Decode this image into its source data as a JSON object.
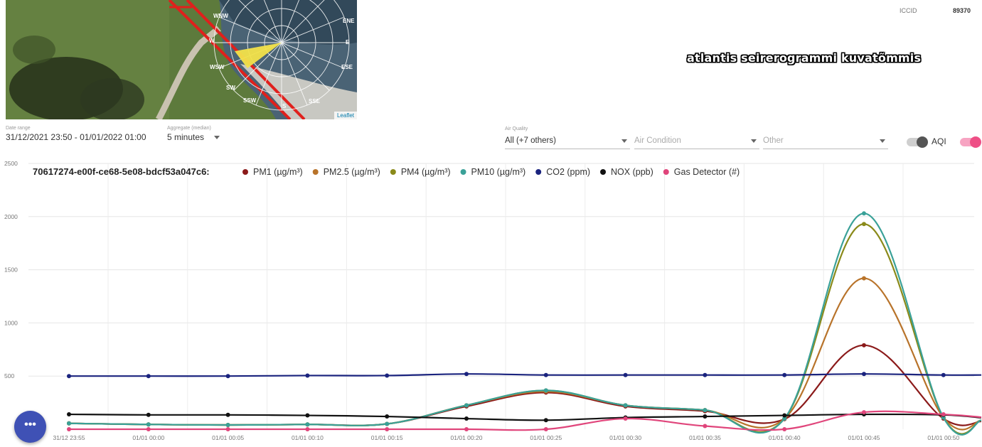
{
  "map": {
    "compass_labels": [
      "ENE",
      "E",
      "ESE",
      "SSE",
      "S",
      "SSW",
      "SW",
      "WSW",
      "W",
      "WNW"
    ],
    "attribution": "Leaflet",
    "colors": {
      "grass": "#5d7a3c",
      "path": "#c9c2b0",
      "water": "#8a9aa8",
      "wind_cone": "#f2e14a",
      "track": "#e0201c"
    }
  },
  "header": {
    "iccid_label": "ICCID",
    "iccid_value": "89370",
    "overlay_title": "atlantis seirerogrammi kuvatõmmis"
  },
  "filters": {
    "date_range": {
      "label": "Date range",
      "value": "31/12/2021 23:50 - 01/01/2022 01:00"
    },
    "aggregate": {
      "label": "Aggregate (median)",
      "value": "5 minutes"
    },
    "air_quality": {
      "label": "Air Quality",
      "value": "All (+7 others)"
    },
    "air_condition": {
      "placeholder": "Air Condition"
    },
    "other": {
      "placeholder": "Other"
    },
    "aqi_label": "AQI",
    "aqi_toggle_on": false,
    "second_toggle_on": true
  },
  "fab": {
    "label": "•••"
  },
  "chart_data": {
    "type": "line",
    "title": "70617274-e00f-ce68-5e08-bdcf53a047c6:",
    "ylim": [
      0,
      2500
    ],
    "yticks": [
      500,
      1000,
      1500,
      2000,
      2500
    ],
    "grid": true,
    "legend_position": "top",
    "categories": [
      "31/12 23:55",
      "01/01 00:00",
      "01/01 00:05",
      "01/01 00:10",
      "01/01 00:15",
      "01/01 00:20",
      "01/01 00:25",
      "01/01 00:30",
      "01/01 00:35",
      "01/01 00:40",
      "01/01 00:45",
      "01/01 00:50"
    ],
    "series": [
      {
        "name": "PM1 (µg/m³)",
        "color": "#8b1a1a",
        "values": [
          55,
          45,
          40,
          45,
          50,
          215,
          345,
          215,
          170,
          95,
          790,
          100
        ]
      },
      {
        "name": "PM2.5 (µg/m³)",
        "color": "#b8732a",
        "values": [
          55,
          45,
          40,
          45,
          50,
          225,
          355,
          225,
          180,
          100,
          1420,
          110
        ]
      },
      {
        "name": "PM4 (µg/m³)",
        "color": "#8a8a1a",
        "values": [
          55,
          45,
          40,
          45,
          50,
          225,
          365,
          225,
          180,
          100,
          1930,
          110
        ]
      },
      {
        "name": "PM10 (µg/m³)",
        "color": "#3aa198",
        "values": [
          55,
          45,
          40,
          45,
          50,
          225,
          365,
          225,
          180,
          100,
          2030,
          110
        ]
      },
      {
        "name": "CO2 (ppm)",
        "color": "#1a237e",
        "values": [
          500,
          500,
          500,
          505,
          505,
          520,
          510,
          510,
          510,
          510,
          520,
          510
        ]
      },
      {
        "name": "NOX (ppb)",
        "color": "#111111",
        "values": [
          140,
          135,
          135,
          130,
          120,
          100,
          85,
          110,
          120,
          130,
          140,
          135
        ]
      },
      {
        "name": "Gas Detector (#)",
        "color": "#e0457b",
        "values": [
          0,
          0,
          0,
          0,
          0,
          0,
          0,
          100,
          30,
          0,
          160,
          140
        ]
      }
    ]
  }
}
